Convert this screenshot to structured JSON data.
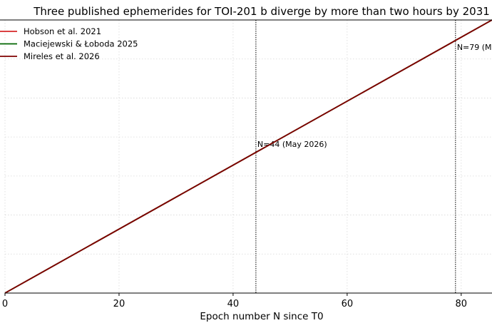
{
  "chart_data": {
    "type": "line",
    "title": "Three published ephemerides for TOI-201 b diverge by more than two hours by 2031",
    "xlabel": "Epoch number N since T0",
    "ylabel": "",
    "xlim": [
      0,
      85.4
    ],
    "ylim": [
      0,
      1
    ],
    "xticks": [
      0,
      20,
      40,
      60,
      80
    ],
    "yticks_count": 7,
    "grid": true,
    "legend_position": "upper-left",
    "series": [
      {
        "name": "Hobson et al. 2021",
        "color": "#d62728",
        "x": [
          0,
          85.4
        ],
        "y": [
          0,
          1
        ]
      },
      {
        "name": "Maciejewski & Łoboda 2025",
        "color": "#006400",
        "x": [
          0,
          85.4
        ],
        "y": [
          0,
          1
        ]
      },
      {
        "name": "Mireles et al. 2026",
        "color": "#7f0000",
        "x": [
          0,
          85.4
        ],
        "y": [
          0,
          1
        ]
      }
    ],
    "vlines": [
      {
        "x": 44,
        "label": "N=44  (May 2026)"
      },
      {
        "x": 79,
        "label": "N=79  (M"
      }
    ]
  }
}
